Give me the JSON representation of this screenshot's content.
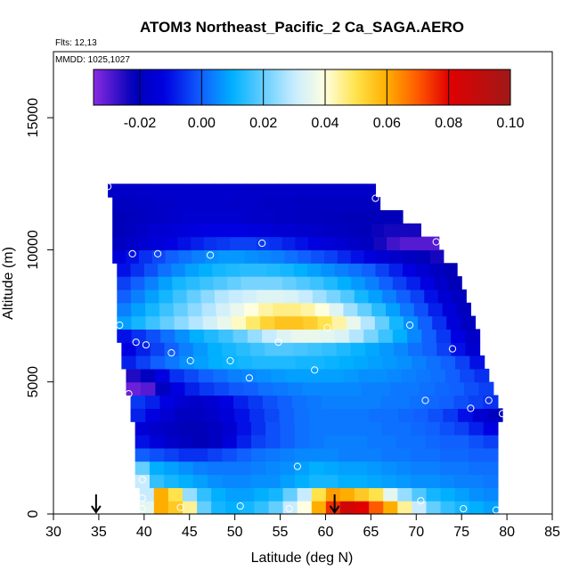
{
  "chart_data": {
    "type": "heatmap",
    "title": "ATOM3 Northeast_Pacific_2 Ca_SAGA.AERO",
    "annotations": {
      "flights": "Flts: 12,13",
      "dates": "MMDD: 1025,1027"
    },
    "xlabel": "Latitude (deg N)",
    "ylabel": "Altitude (m)",
    "xlim": [
      30,
      85
    ],
    "ylim": [
      0,
      17500
    ],
    "x_ticks": [
      "30",
      "35",
      "40",
      "45",
      "50",
      "55",
      "60",
      "65",
      "70",
      "75",
      "80",
      "85"
    ],
    "y_ticks": [
      "0",
      "5000",
      "10000",
      "15000"
    ],
    "colorbar": {
      "range": [
        -0.035,
        0.1
      ],
      "tick_labels": [
        "-0.02",
        "0.00",
        "0.02",
        "0.04",
        "0.06",
        "0.08",
        "0.10"
      ],
      "tick_values": [
        -0.02,
        0.0,
        0.02,
        0.04,
        0.06,
        0.08,
        0.1
      ],
      "colors": [
        "#8a2be2",
        "#0000b8",
        "#0000e0",
        "#1060ff",
        "#00b0ff",
        "#c8ecff",
        "#ffffe0",
        "#ffe34a",
        "#ffae00",
        "#ff5a00",
        "#e00000",
        "#a01818"
      ],
      "color_stops": [
        -0.035,
        -0.022,
        -0.012,
        0.0,
        0.01,
        0.03,
        0.04,
        0.05,
        0.06,
        0.07,
        0.08,
        0.1
      ]
    },
    "grid": false,
    "field_rows": [
      {
        "alt": 250,
        "lat_start": 39.5,
        "lat_end": 79,
        "values": [
          0.035,
          0.06,
          0.055,
          0.045,
          0.02,
          0.012,
          0.01,
          0.012,
          0.015,
          0.02,
          0.03,
          0.04,
          0.06,
          0.075,
          0.085,
          0.08,
          0.07,
          0.06,
          0.045,
          0.03,
          0.02,
          0.015,
          0.012,
          0.01,
          0.008
        ]
      },
      {
        "alt": 750,
        "lat_start": 39.5,
        "lat_end": 79,
        "values": [
          0.03,
          0.06,
          0.05,
          0.025,
          0.015,
          0.01,
          0.008,
          0.008,
          0.01,
          0.012,
          0.02,
          0.03,
          0.05,
          0.062,
          0.06,
          0.055,
          0.05,
          0.035,
          0.025,
          0.018,
          0.012,
          0.01,
          0.008,
          0.006,
          0.005
        ]
      },
      {
        "alt": 1250,
        "lat_start": 39,
        "lat_end": 79,
        "values": [
          0.03,
          0.015,
          0.012,
          0.01,
          0.008,
          0.006,
          0.005,
          0.005,
          0.006,
          0.006,
          0.008,
          0.01,
          0.012,
          0.012,
          0.01,
          0.01,
          0.009,
          0.008,
          0.007,
          0.006,
          0.006,
          0.005,
          0.004,
          0.004,
          0.003
        ]
      },
      {
        "alt": 1750,
        "lat_start": 39,
        "lat_end": 79,
        "values": [
          0.02,
          0.01,
          0.008,
          0.006,
          0.004,
          0.003,
          0.003,
          0.003,
          0.004,
          0.005,
          0.006,
          0.008,
          0.01,
          0.009,
          0.008,
          0.008,
          0.007,
          0.006,
          0.005,
          0.004,
          0.004,
          0.003,
          0.003,
          0.002,
          0.002
        ]
      },
      {
        "alt": 2250,
        "lat_start": 39,
        "lat_end": 79,
        "values": [
          0.0,
          -0.002,
          -0.004,
          -0.006,
          -0.006,
          -0.004,
          -0.002,
          0.0,
          0.002,
          0.003,
          0.004,
          0.005,
          0.005,
          0.005,
          0.004,
          0.004,
          0.004,
          0.003,
          0.003,
          0.002,
          0.002,
          0.001,
          0.001,
          0.0,
          0.0
        ]
      },
      {
        "alt": 2750,
        "lat_start": 39,
        "lat_end": 79,
        "values": [
          -0.01,
          -0.014,
          -0.018,
          -0.02,
          -0.022,
          -0.02,
          -0.014,
          -0.008,
          -0.004,
          -0.002,
          0.0,
          0.002,
          0.003,
          0.004,
          0.004,
          0.004,
          0.003,
          0.003,
          0.002,
          0.002,
          0.001,
          0.0,
          0.0,
          -0.002,
          -0.004
        ]
      },
      {
        "alt": 3250,
        "lat_start": 39,
        "lat_end": 79,
        "values": [
          -0.015,
          -0.018,
          -0.02,
          -0.022,
          -0.022,
          -0.02,
          -0.016,
          -0.01,
          -0.006,
          -0.002,
          0.0,
          0.002,
          0.003,
          0.003,
          0.003,
          0.003,
          0.003,
          0.002,
          0.002,
          0.001,
          0.0,
          -0.002,
          -0.004,
          -0.008,
          -0.012
        ]
      },
      {
        "alt": 3750,
        "lat_start": 38.5,
        "lat_end": 79.5,
        "values": [
          -0.008,
          -0.012,
          -0.016,
          -0.02,
          -0.02,
          -0.018,
          -0.014,
          -0.01,
          -0.006,
          -0.003,
          0.0,
          0.002,
          0.003,
          0.003,
          0.003,
          0.003,
          0.002,
          0.002,
          0.001,
          0.0,
          -0.002,
          -0.005,
          -0.01,
          -0.016,
          -0.02
        ]
      },
      {
        "alt": 4250,
        "lat_start": 38.5,
        "lat_end": 79,
        "values": [
          -0.005,
          -0.008,
          -0.012,
          -0.016,
          -0.018,
          -0.016,
          -0.012,
          -0.008,
          -0.005,
          -0.002,
          0.0,
          0.002,
          0.003,
          0.004,
          0.004,
          0.004,
          0.004,
          0.003,
          0.003,
          0.002,
          0.001,
          0.0,
          -0.002,
          -0.004,
          -0.006
        ]
      },
      {
        "alt": 4750,
        "lat_start": 38,
        "lat_end": 78.5,
        "values": [
          -0.032,
          -0.03,
          -0.02,
          -0.012,
          -0.008,
          -0.005,
          -0.003,
          -0.001,
          0.0,
          0.002,
          0.003,
          0.004,
          0.005,
          0.005,
          0.005,
          0.005,
          0.004,
          0.004,
          0.003,
          0.003,
          0.002,
          0.001,
          0.0,
          -0.002,
          -0.004
        ]
      },
      {
        "alt": 5250,
        "lat_start": 38,
        "lat_end": 78,
        "values": [
          -0.025,
          -0.02,
          -0.012,
          -0.006,
          -0.003,
          0.0,
          0.002,
          0.004,
          0.005,
          0.006,
          0.007,
          0.008,
          0.008,
          0.008,
          0.008,
          0.007,
          0.006,
          0.006,
          0.005,
          0.004,
          0.003,
          0.002,
          0.0,
          -0.003,
          -0.006
        ]
      },
      {
        "alt": 5750,
        "lat_start": 37.5,
        "lat_end": 77.5,
        "values": [
          -0.008,
          -0.004,
          0.0,
          0.003,
          0.006,
          0.008,
          0.01,
          0.011,
          0.012,
          0.013,
          0.013,
          0.013,
          0.012,
          0.012,
          0.011,
          0.01,
          0.009,
          0.008,
          0.007,
          0.006,
          0.004,
          0.002,
          0.0,
          -0.004,
          -0.01
        ]
      },
      {
        "alt": 6250,
        "lat_start": 37.5,
        "lat_end": 77,
        "values": [
          -0.012,
          -0.008,
          -0.004,
          0.0,
          0.004,
          0.007,
          0.01,
          0.012,
          0.014,
          0.016,
          0.018,
          0.018,
          0.017,
          0.016,
          0.015,
          0.013,
          0.011,
          0.009,
          0.007,
          0.005,
          0.002,
          0.0,
          -0.004,
          -0.01,
          -0.016
        ]
      },
      {
        "alt": 6750,
        "lat_start": 37,
        "lat_end": 77,
        "values": [
          -0.01,
          -0.006,
          -0.002,
          0.002,
          0.006,
          0.01,
          0.013,
          0.016,
          0.02,
          0.025,
          0.03,
          0.034,
          0.036,
          0.036,
          0.035,
          0.033,
          0.028,
          0.022,
          0.016,
          0.01,
          0.005,
          0.0,
          -0.005,
          -0.012,
          -0.018
        ]
      },
      {
        "alt": 7250,
        "lat_start": 37,
        "lat_end": 76.5,
        "values": [
          0.008,
          0.012,
          0.016,
          0.02,
          0.024,
          0.028,
          0.032,
          0.036,
          0.042,
          0.048,
          0.053,
          0.056,
          0.056,
          0.054,
          0.05,
          0.044,
          0.036,
          0.028,
          0.02,
          0.012,
          0.006,
          0.0,
          -0.006,
          -0.014,
          -0.02
        ]
      },
      {
        "alt": 7750,
        "lat_start": 37,
        "lat_end": 76,
        "values": [
          0.004,
          0.008,
          0.012,
          0.016,
          0.02,
          0.024,
          0.028,
          0.032,
          0.036,
          0.04,
          0.044,
          0.046,
          0.046,
          0.044,
          0.04,
          0.034,
          0.026,
          0.02,
          0.014,
          0.008,
          0.003,
          -0.002,
          -0.008,
          -0.014,
          -0.02
        ]
      },
      {
        "alt": 8250,
        "lat_start": 37,
        "lat_end": 75.5,
        "values": [
          0.0,
          0.004,
          0.008,
          0.012,
          0.016,
          0.02,
          0.024,
          0.028,
          0.03,
          0.032,
          0.034,
          0.034,
          0.033,
          0.03,
          0.026,
          0.022,
          0.018,
          0.012,
          0.008,
          0.004,
          0.0,
          -0.004,
          -0.01,
          -0.016,
          -0.02
        ]
      },
      {
        "alt": 8750,
        "lat_start": 37,
        "lat_end": 75,
        "values": [
          -0.004,
          0.0,
          0.004,
          0.008,
          0.012,
          0.014,
          0.016,
          0.018,
          0.02,
          0.022,
          0.022,
          0.022,
          0.02,
          0.018,
          0.016,
          0.013,
          0.01,
          0.007,
          0.004,
          0.0,
          -0.004,
          -0.008,
          -0.012,
          -0.018,
          -0.022
        ]
      },
      {
        "alt": 9250,
        "lat_start": 37,
        "lat_end": 74.5,
        "values": [
          -0.01,
          -0.006,
          -0.002,
          0.002,
          0.005,
          0.008,
          0.01,
          0.012,
          0.013,
          0.014,
          0.014,
          0.013,
          0.012,
          0.01,
          0.008,
          0.006,
          0.004,
          0.002,
          0.0,
          -0.004,
          -0.008,
          -0.012,
          -0.016,
          -0.02,
          -0.022
        ]
      },
      {
        "alt": 9750,
        "lat_start": 36.5,
        "lat_end": 73,
        "values": [
          -0.014,
          -0.01,
          -0.006,
          -0.003,
          0.0,
          0.002,
          0.004,
          0.006,
          0.007,
          0.007,
          0.006,
          0.005,
          0.004,
          0.002,
          0.0,
          -0.002,
          -0.004,
          -0.007,
          -0.01,
          -0.013,
          -0.016,
          -0.018,
          -0.02,
          -0.022,
          -0.024
        ]
      },
      {
        "alt": 10250,
        "lat_start": 36.5,
        "lat_end": 72.5,
        "values": [
          -0.02,
          -0.018,
          -0.016,
          -0.014,
          -0.012,
          -0.01,
          -0.008,
          -0.006,
          -0.005,
          -0.004,
          -0.004,
          -0.005,
          -0.006,
          -0.008,
          -0.01,
          -0.012,
          -0.014,
          -0.016,
          -0.018,
          -0.02,
          -0.024,
          -0.028,
          -0.03,
          -0.03,
          -0.03
        ]
      },
      {
        "alt": 10750,
        "lat_start": 36.5,
        "lat_end": 70.5,
        "values": [
          -0.022,
          -0.02,
          -0.018,
          -0.016,
          -0.015,
          -0.014,
          -0.013,
          -0.012,
          -0.012,
          -0.012,
          -0.012,
          -0.013,
          -0.014,
          -0.015,
          -0.016,
          -0.017,
          -0.018,
          -0.019,
          -0.02,
          -0.021,
          -0.022,
          -0.023,
          -0.024,
          -0.024,
          -0.024
        ]
      },
      {
        "alt": 11250,
        "lat_start": 36.5,
        "lat_end": 68.5,
        "values": [
          -0.022,
          -0.021,
          -0.02,
          -0.019,
          -0.018,
          -0.017,
          -0.016,
          -0.016,
          -0.016,
          -0.016,
          -0.016,
          -0.017,
          -0.018,
          -0.018,
          -0.019,
          -0.019,
          -0.02,
          -0.02,
          -0.021,
          -0.021,
          -0.022,
          -0.022,
          -0.022,
          -0.022,
          -0.022
        ]
      },
      {
        "alt": 11750,
        "lat_start": 36.5,
        "lat_end": 66,
        "values": [
          -0.02,
          -0.02,
          -0.019,
          -0.019,
          -0.018,
          -0.018,
          -0.017,
          -0.017,
          -0.017,
          -0.017,
          -0.017,
          -0.018,
          -0.018,
          -0.018,
          -0.019,
          -0.019,
          -0.019,
          -0.02,
          -0.02,
          -0.02,
          -0.02,
          -0.02,
          -0.02,
          -0.02,
          -0.02
        ]
      },
      {
        "alt": 12250,
        "lat_start": 36,
        "lat_end": 65.5,
        "values": [
          -0.018,
          -0.018,
          -0.018,
          -0.018,
          -0.017,
          -0.017,
          -0.017,
          -0.017,
          -0.017,
          -0.017,
          -0.017,
          -0.017,
          -0.017,
          -0.018,
          -0.018,
          -0.018,
          -0.018,
          -0.018,
          -0.018,
          -0.018,
          -0.018,
          -0.018,
          -0.018,
          -0.018,
          -0.018
        ]
      }
    ],
    "sample_points": [
      {
        "lat": 36.0,
        "alt": 12400
      },
      {
        "lat": 65.5,
        "alt": 11950
      },
      {
        "lat": 72.2,
        "alt": 10300
      },
      {
        "lat": 53.0,
        "alt": 10250
      },
      {
        "lat": 38.7,
        "alt": 9850
      },
      {
        "lat": 41.5,
        "alt": 9850
      },
      {
        "lat": 47.3,
        "alt": 9800
      },
      {
        "lat": 37.3,
        "alt": 7150
      },
      {
        "lat": 60.2,
        "alt": 7050
      },
      {
        "lat": 69.3,
        "alt": 7150
      },
      {
        "lat": 77.0,
        "alt": 7450
      },
      {
        "lat": 39.1,
        "alt": 6500
      },
      {
        "lat": 40.2,
        "alt": 6400
      },
      {
        "lat": 43.0,
        "alt": 6100
      },
      {
        "lat": 45.1,
        "alt": 5800
      },
      {
        "lat": 49.5,
        "alt": 5800
      },
      {
        "lat": 54.8,
        "alt": 6500
      },
      {
        "lat": 58.8,
        "alt": 5450
      },
      {
        "lat": 51.6,
        "alt": 5150
      },
      {
        "lat": 74.0,
        "alt": 6250
      },
      {
        "lat": 38.3,
        "alt": 4550
      },
      {
        "lat": 71.0,
        "alt": 4300
      },
      {
        "lat": 76.0,
        "alt": 4000
      },
      {
        "lat": 78.0,
        "alt": 4300
      },
      {
        "lat": 79.5,
        "alt": 3800
      },
      {
        "lat": 56.9,
        "alt": 1800
      },
      {
        "lat": 39.8,
        "alt": 1300
      },
      {
        "lat": 70.5,
        "alt": 500
      },
      {
        "lat": 39.8,
        "alt": 600
      },
      {
        "lat": 39.8,
        "alt": 200
      },
      {
        "lat": 44.0,
        "alt": 250
      },
      {
        "lat": 50.6,
        "alt": 300
      },
      {
        "lat": 56.0,
        "alt": 200
      },
      {
        "lat": 57.8,
        "alt": 150
      },
      {
        "lat": 75.2,
        "alt": 200
      },
      {
        "lat": 78.8,
        "alt": 150
      }
    ],
    "arrows": [
      {
        "lat": 34.7
      },
      {
        "lat": 61.0
      }
    ]
  }
}
